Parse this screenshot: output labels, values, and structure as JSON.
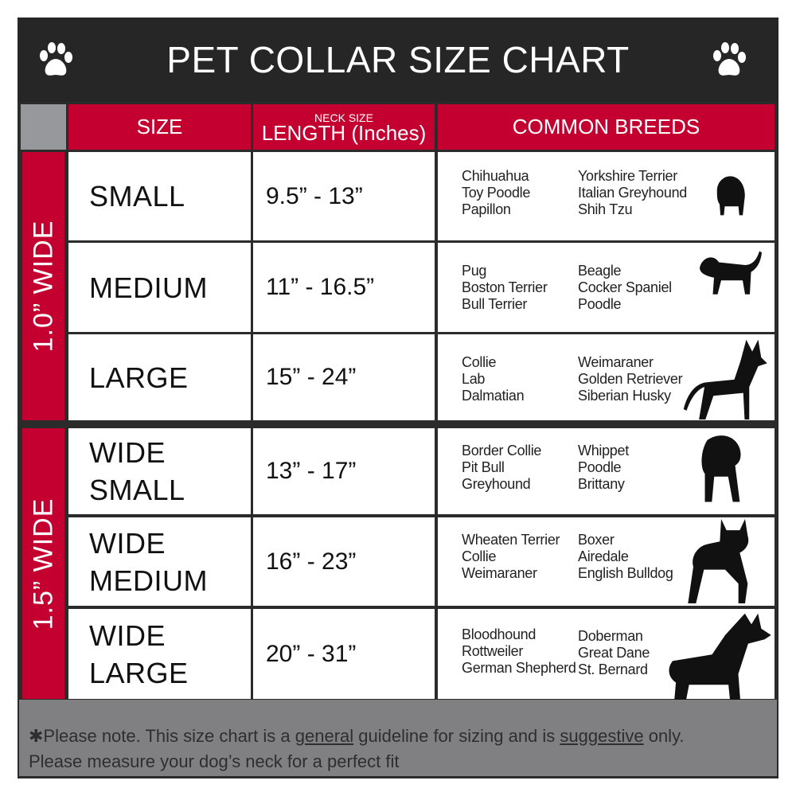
{
  "title": "PET COLLAR SIZE CHART",
  "headers": {
    "size": "SIZE",
    "length_small": "NECK SIZE",
    "length": "LENGTH (Inches)",
    "breeds": "COMMON BREEDS"
  },
  "groups": [
    {
      "label": "1.0” WIDE"
    },
    {
      "label": "1.5” WIDE"
    }
  ],
  "rows": [
    {
      "size": "SMALL",
      "length": "9.5” - 13”",
      "breeds1": [
        "Chihuahua",
        "Toy Poodle",
        "Papillon"
      ],
      "breeds2": [
        "Yorkshire Terrier",
        "Italian Greyhound",
        "Shih Tzu"
      ],
      "icon": "small-dog-icon"
    },
    {
      "size": "MEDIUM",
      "length": "11” - 16.5”",
      "breeds1": [
        "Pug",
        "Boston Terrier",
        "Bull Terrier"
      ],
      "breeds2": [
        "Beagle",
        "Cocker Spaniel",
        "Poodle"
      ],
      "icon": "medium-dog-icon"
    },
    {
      "size": "LARGE",
      "length": "15” - 24”",
      "breeds1": [
        "Collie",
        "Lab",
        "Dalmatian"
      ],
      "breeds2": [
        "Weimaraner",
        "Golden Retriever",
        "Siberian Husky"
      ],
      "icon": "large-dog-icon"
    },
    {
      "size": "WIDE SMALL",
      "length": "13” - 17”",
      "breeds1": [
        "Border Collie",
        "Pit Bull",
        "Greyhound"
      ],
      "breeds2": [
        "Whippet",
        "Poodle",
        "Brittany"
      ],
      "icon": "bulldog-icon"
    },
    {
      "size": "WIDE MEDIUM",
      "length": "16” - 23”",
      "breeds1": [
        "Wheaten Terrier",
        "Collie",
        "Weimaraner"
      ],
      "breeds2": [
        "Boxer",
        "Airedale",
        "English Bulldog"
      ],
      "icon": "pitbull-icon"
    },
    {
      "size": "WIDE LARGE",
      "length": "20” - 31”",
      "breeds1": [
        "Bloodhound",
        "Rottweiler",
        "German Shepherd"
      ],
      "breeds2": [
        "Doberman",
        "Great Dane",
        "St. Bernard"
      ],
      "icon": "doberman-icon"
    }
  ],
  "footer": {
    "p1": "✱Please note. This size chart is a ",
    "u1": "general",
    "p2": " guideline for sizing and is ",
    "u2": "suggestive",
    "p3": " only.",
    "line2": "Please measure your dog’s neck for a perfect fit"
  },
  "colors": {
    "red": "#c3002f",
    "dark": "#262626",
    "gray": "#808083"
  }
}
